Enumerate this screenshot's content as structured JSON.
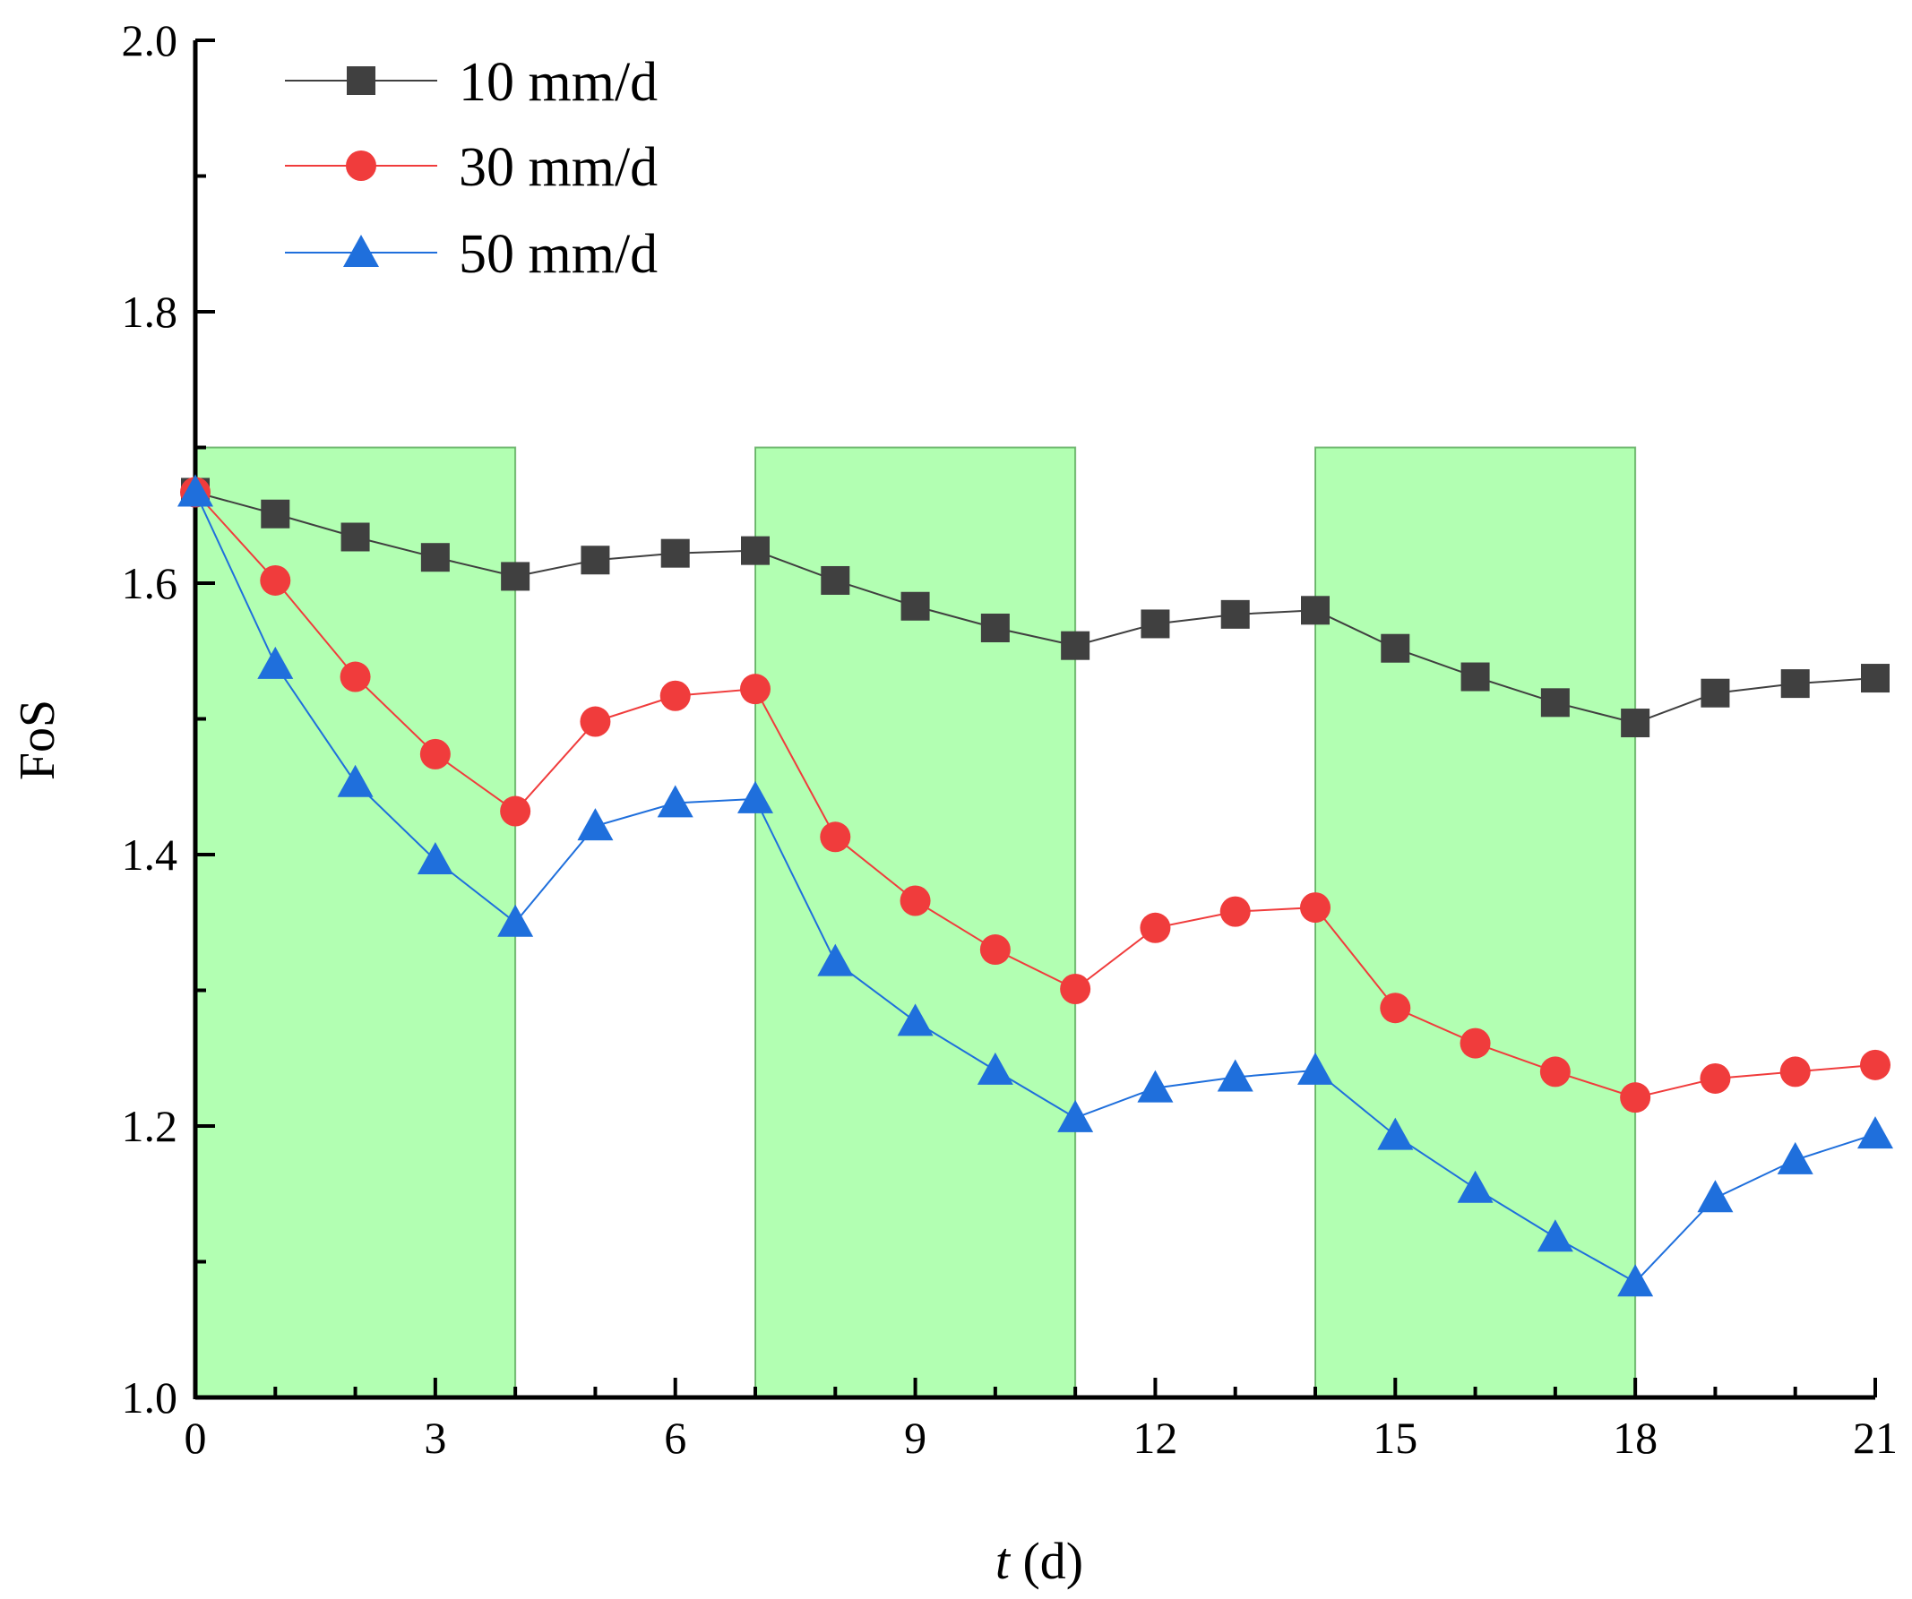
{
  "chart_data": {
    "type": "line",
    "x": [
      0,
      1,
      2,
      3,
      4,
      5,
      6,
      7,
      8,
      9,
      10,
      11,
      12,
      13,
      14,
      15,
      16,
      17,
      18,
      19,
      20,
      21
    ],
    "series": [
      {
        "name": "10 mm/d",
        "color": "#404040",
        "marker": "square",
        "values": [
          1.667,
          1.651,
          1.634,
          1.619,
          1.605,
          1.617,
          1.622,
          1.624,
          1.602,
          1.583,
          1.567,
          1.554,
          1.57,
          1.577,
          1.58,
          1.552,
          1.531,
          1.512,
          1.497,
          1.519,
          1.526,
          1.53
        ]
      },
      {
        "name": "30 mm/d",
        "color": "#f03c3c",
        "marker": "circle",
        "values": [
          1.667,
          1.602,
          1.531,
          1.474,
          1.432,
          1.498,
          1.517,
          1.522,
          1.413,
          1.366,
          1.33,
          1.301,
          1.346,
          1.358,
          1.361,
          1.287,
          1.261,
          1.24,
          1.221,
          1.235,
          1.24,
          1.245
        ]
      },
      {
        "name": "50 mm/d",
        "color": "#1f6fdc",
        "marker": "triangle",
        "values": [
          1.667,
          1.54,
          1.453,
          1.396,
          1.35,
          1.421,
          1.438,
          1.441,
          1.321,
          1.277,
          1.241,
          1.206,
          1.228,
          1.236,
          1.241,
          1.193,
          1.154,
          1.118,
          1.085,
          1.147,
          1.175,
          1.194
        ]
      }
    ],
    "shaded_intervals": [
      [
        0,
        4
      ],
      [
        7,
        11
      ],
      [
        14,
        18
      ]
    ],
    "shade_color": "#66ff66",
    "xlabel_italic": "t",
    "xlabel_rest": " (d)",
    "ylabel": "FoS",
    "xlim": [
      0,
      21
    ],
    "ylim": [
      1.0,
      2.0
    ],
    "xticks": [
      "0",
      "3",
      "6",
      "9",
      "12",
      "15",
      "18",
      "21"
    ],
    "yticks": [
      "1.0",
      "1.2",
      "1.4",
      "1.6",
      "1.8",
      "2.0"
    ],
    "grid": false,
    "legend_position": "top-left"
  }
}
